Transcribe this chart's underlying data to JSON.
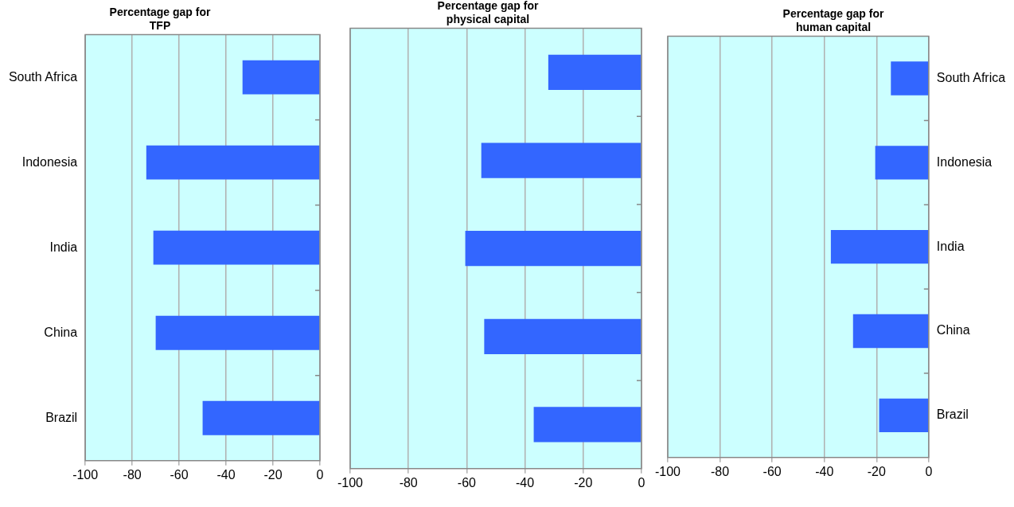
{
  "chart_data": [
    {
      "type": "bar",
      "orientation": "horizontal",
      "title": "Percentage gap for TFP",
      "categories": [
        "South Africa",
        "Indonesia",
        "India",
        "China",
        "Brazil"
      ],
      "values": [
        -33,
        -74,
        -71,
        -70,
        -50
      ],
      "color": "#3366ff",
      "xlim": [
        -100,
        0
      ],
      "xticks": [
        -100,
        -80,
        -60,
        -40,
        -20,
        0
      ],
      "grid": "x"
    },
    {
      "type": "bar",
      "orientation": "horizontal",
      "title": "Percentage gap for physical capital",
      "categories": [
        null,
        null,
        null,
        null,
        null
      ],
      "values": [
        -32,
        -55,
        -60.5,
        -54,
        -37
      ],
      "color": "#3366ff",
      "xlim": [
        -100,
        0
      ],
      "xticks": [
        -100,
        -80,
        -60,
        -40,
        -20,
        0
      ],
      "grid": "x"
    },
    {
      "type": "bar",
      "orientation": "horizontal",
      "title": "Percentage gap for human capital",
      "categories": [
        "South Africa",
        "Indonesia",
        "India",
        "China",
        "Brazil"
      ],
      "values": [
        -14.5,
        -20.5,
        -37.5,
        -29,
        -19
      ],
      "color": "#3366ff",
      "xlim": [
        -100,
        0
      ],
      "xticks": [
        -100,
        -80,
        -60,
        -40,
        -20,
        0
      ],
      "grid": "x"
    }
  ]
}
